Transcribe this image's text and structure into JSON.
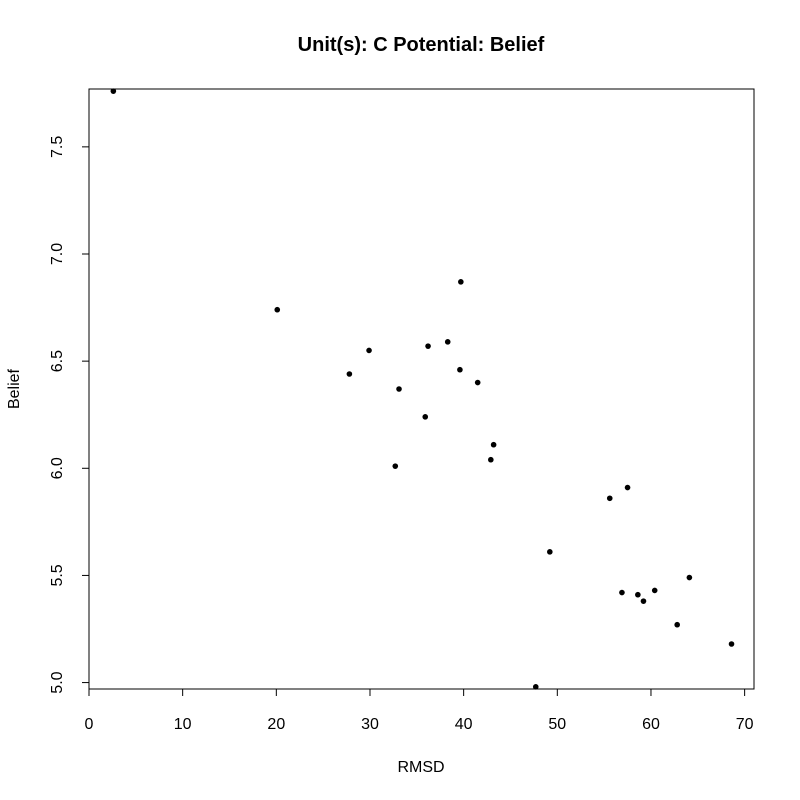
{
  "chart_data": {
    "type": "scatter",
    "title": "Unit(s): C Potential: Belief",
    "xlabel": "RMSD",
    "ylabel": "Belief",
    "xlim": [
      0,
      71
    ],
    "ylim": [
      4.97,
      7.77
    ],
    "xticks": [
      0,
      10,
      20,
      30,
      40,
      50,
      60,
      70
    ],
    "yticks": [
      "5.0",
      "5.5",
      "6.0",
      "6.5",
      "7.0",
      "7.5"
    ],
    "grid": false,
    "points": [
      {
        "x": 2.6,
        "y": 7.76
      },
      {
        "x": 20.1,
        "y": 6.74
      },
      {
        "x": 27.8,
        "y": 6.44
      },
      {
        "x": 29.9,
        "y": 6.55
      },
      {
        "x": 32.7,
        "y": 6.01
      },
      {
        "x": 33.1,
        "y": 6.37
      },
      {
        "x": 35.9,
        "y": 6.24
      },
      {
        "x": 36.2,
        "y": 6.57
      },
      {
        "x": 38.3,
        "y": 6.59
      },
      {
        "x": 39.6,
        "y": 6.46
      },
      {
        "x": 39.7,
        "y": 6.87
      },
      {
        "x": 41.5,
        "y": 6.4
      },
      {
        "x": 42.9,
        "y": 6.04
      },
      {
        "x": 43.2,
        "y": 6.11
      },
      {
        "x": 47.7,
        "y": 4.98
      },
      {
        "x": 49.2,
        "y": 5.61
      },
      {
        "x": 55.6,
        "y": 5.86
      },
      {
        "x": 56.9,
        "y": 5.42
      },
      {
        "x": 57.5,
        "y": 5.91
      },
      {
        "x": 58.6,
        "y": 5.41
      },
      {
        "x": 59.2,
        "y": 5.38
      },
      {
        "x": 60.4,
        "y": 5.43
      },
      {
        "x": 62.8,
        "y": 5.27
      },
      {
        "x": 64.1,
        "y": 5.49
      },
      {
        "x": 68.6,
        "y": 5.18
      }
    ]
  }
}
